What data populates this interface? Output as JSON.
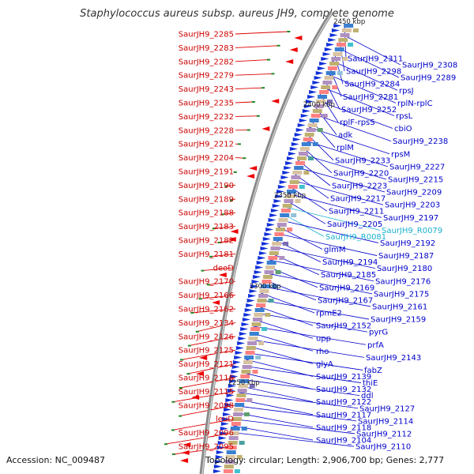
{
  "title": "Staphylococcus aureus subsp. aureus JH9, complete genome",
  "accession": "Accession: NC_009487",
  "summary": "Topology: circular; Length: 2,906,700 bp; Genes: 2,777",
  "ticks": [
    "2450 kbp",
    "2400 kbp",
    "2350 kbp",
    "2300 kbp",
    "2250 kbp"
  ],
  "left_labels": [
    "SaurJH9_2285",
    "SaurJH9_2283",
    "SaurJH9_2282",
    "SaurJH9_2279",
    "SaurJH9_2243",
    "SaurJH9_2235",
    "SaurJH9_2232",
    "SaurJH9_2228",
    "SaurJH9_2212",
    "SaurJH9_2204",
    "SaurJH9_2191",
    "SaurJH9_2190",
    "SaurJH9_2189",
    "SaurJH9_2188",
    "SaurJH9_2183",
    "SaurJH9_2182",
    "SaurJH9_2181",
    "deoD",
    "SaurJH9_2170",
    "SaurJH9_2166",
    "SaurJH9_2162",
    "SaurJH9_2134",
    "SaurJH9_2126",
    "SaurJH9_2125",
    "SaurJH9_2121",
    "SaurJH9_2116",
    "SaurJH9_2115",
    "SaurJH9_2098",
    "leuD",
    "SaurJH9_2096",
    "SaurJH9_2095"
  ],
  "right_labels": [
    "SaurJH9_2311",
    "SaurJH9_2308",
    "SaurJH9_2298",
    "SaurJH9_2289",
    "SaurJH9_2284",
    "rpsJ",
    "SaurJH9_2281",
    "rplN-rplC",
    "SaurJH9_2252",
    "rpsL",
    "rplF-rpsS",
    "cbiO",
    "adk",
    "SaurJH9_2238",
    "rplM",
    "rpsM",
    "SaurJH9_2233",
    "SaurJH9_2227",
    "SaurJH9_2220",
    "SaurJH9_2215",
    "SaurJH9_2223",
    "SaurJH9_2209",
    "SaurJH9_2217",
    "SaurJH9_2203",
    "SaurJH9_2211",
    "SaurJH9_2197",
    "SaurJH9_2205",
    "SaurJH9_R0079",
    "SaurJH9_R0081",
    "SaurJH9_2192",
    "glmM",
    "SaurJH9_2187",
    "SaurJH9_2194",
    "SaurJH9_2180",
    "SaurJH9_2185",
    "SaurJH9_2176",
    "SaurJH9_2169",
    "SaurJH9_2175",
    "SaurJH9_2167",
    "SaurJH9_2161",
    "rpmE2",
    "SaurJH9_2159",
    "SaurJH9_2152",
    "pyrG",
    "upp",
    "prfA",
    "rho",
    "SaurJH9_2143",
    "glyA",
    "fabZ",
    "SaurJH9_2139",
    "thiE",
    "SaurJH9_2132",
    "ddl",
    "SaurJH9_2122",
    "SaurJH9_2127",
    "SaurJH9_2117",
    "SaurJH9_2114",
    "SaurJH9_2118",
    "SaurJH9_2112",
    "SaurJH9_2104",
    "SaurJH9_2110"
  ],
  "colors": {
    "forward_gene": "#0000cc",
    "reverse_gene": "#dd0000",
    "backbone": "#888888",
    "rna_gene": "#17b0d0"
  }
}
